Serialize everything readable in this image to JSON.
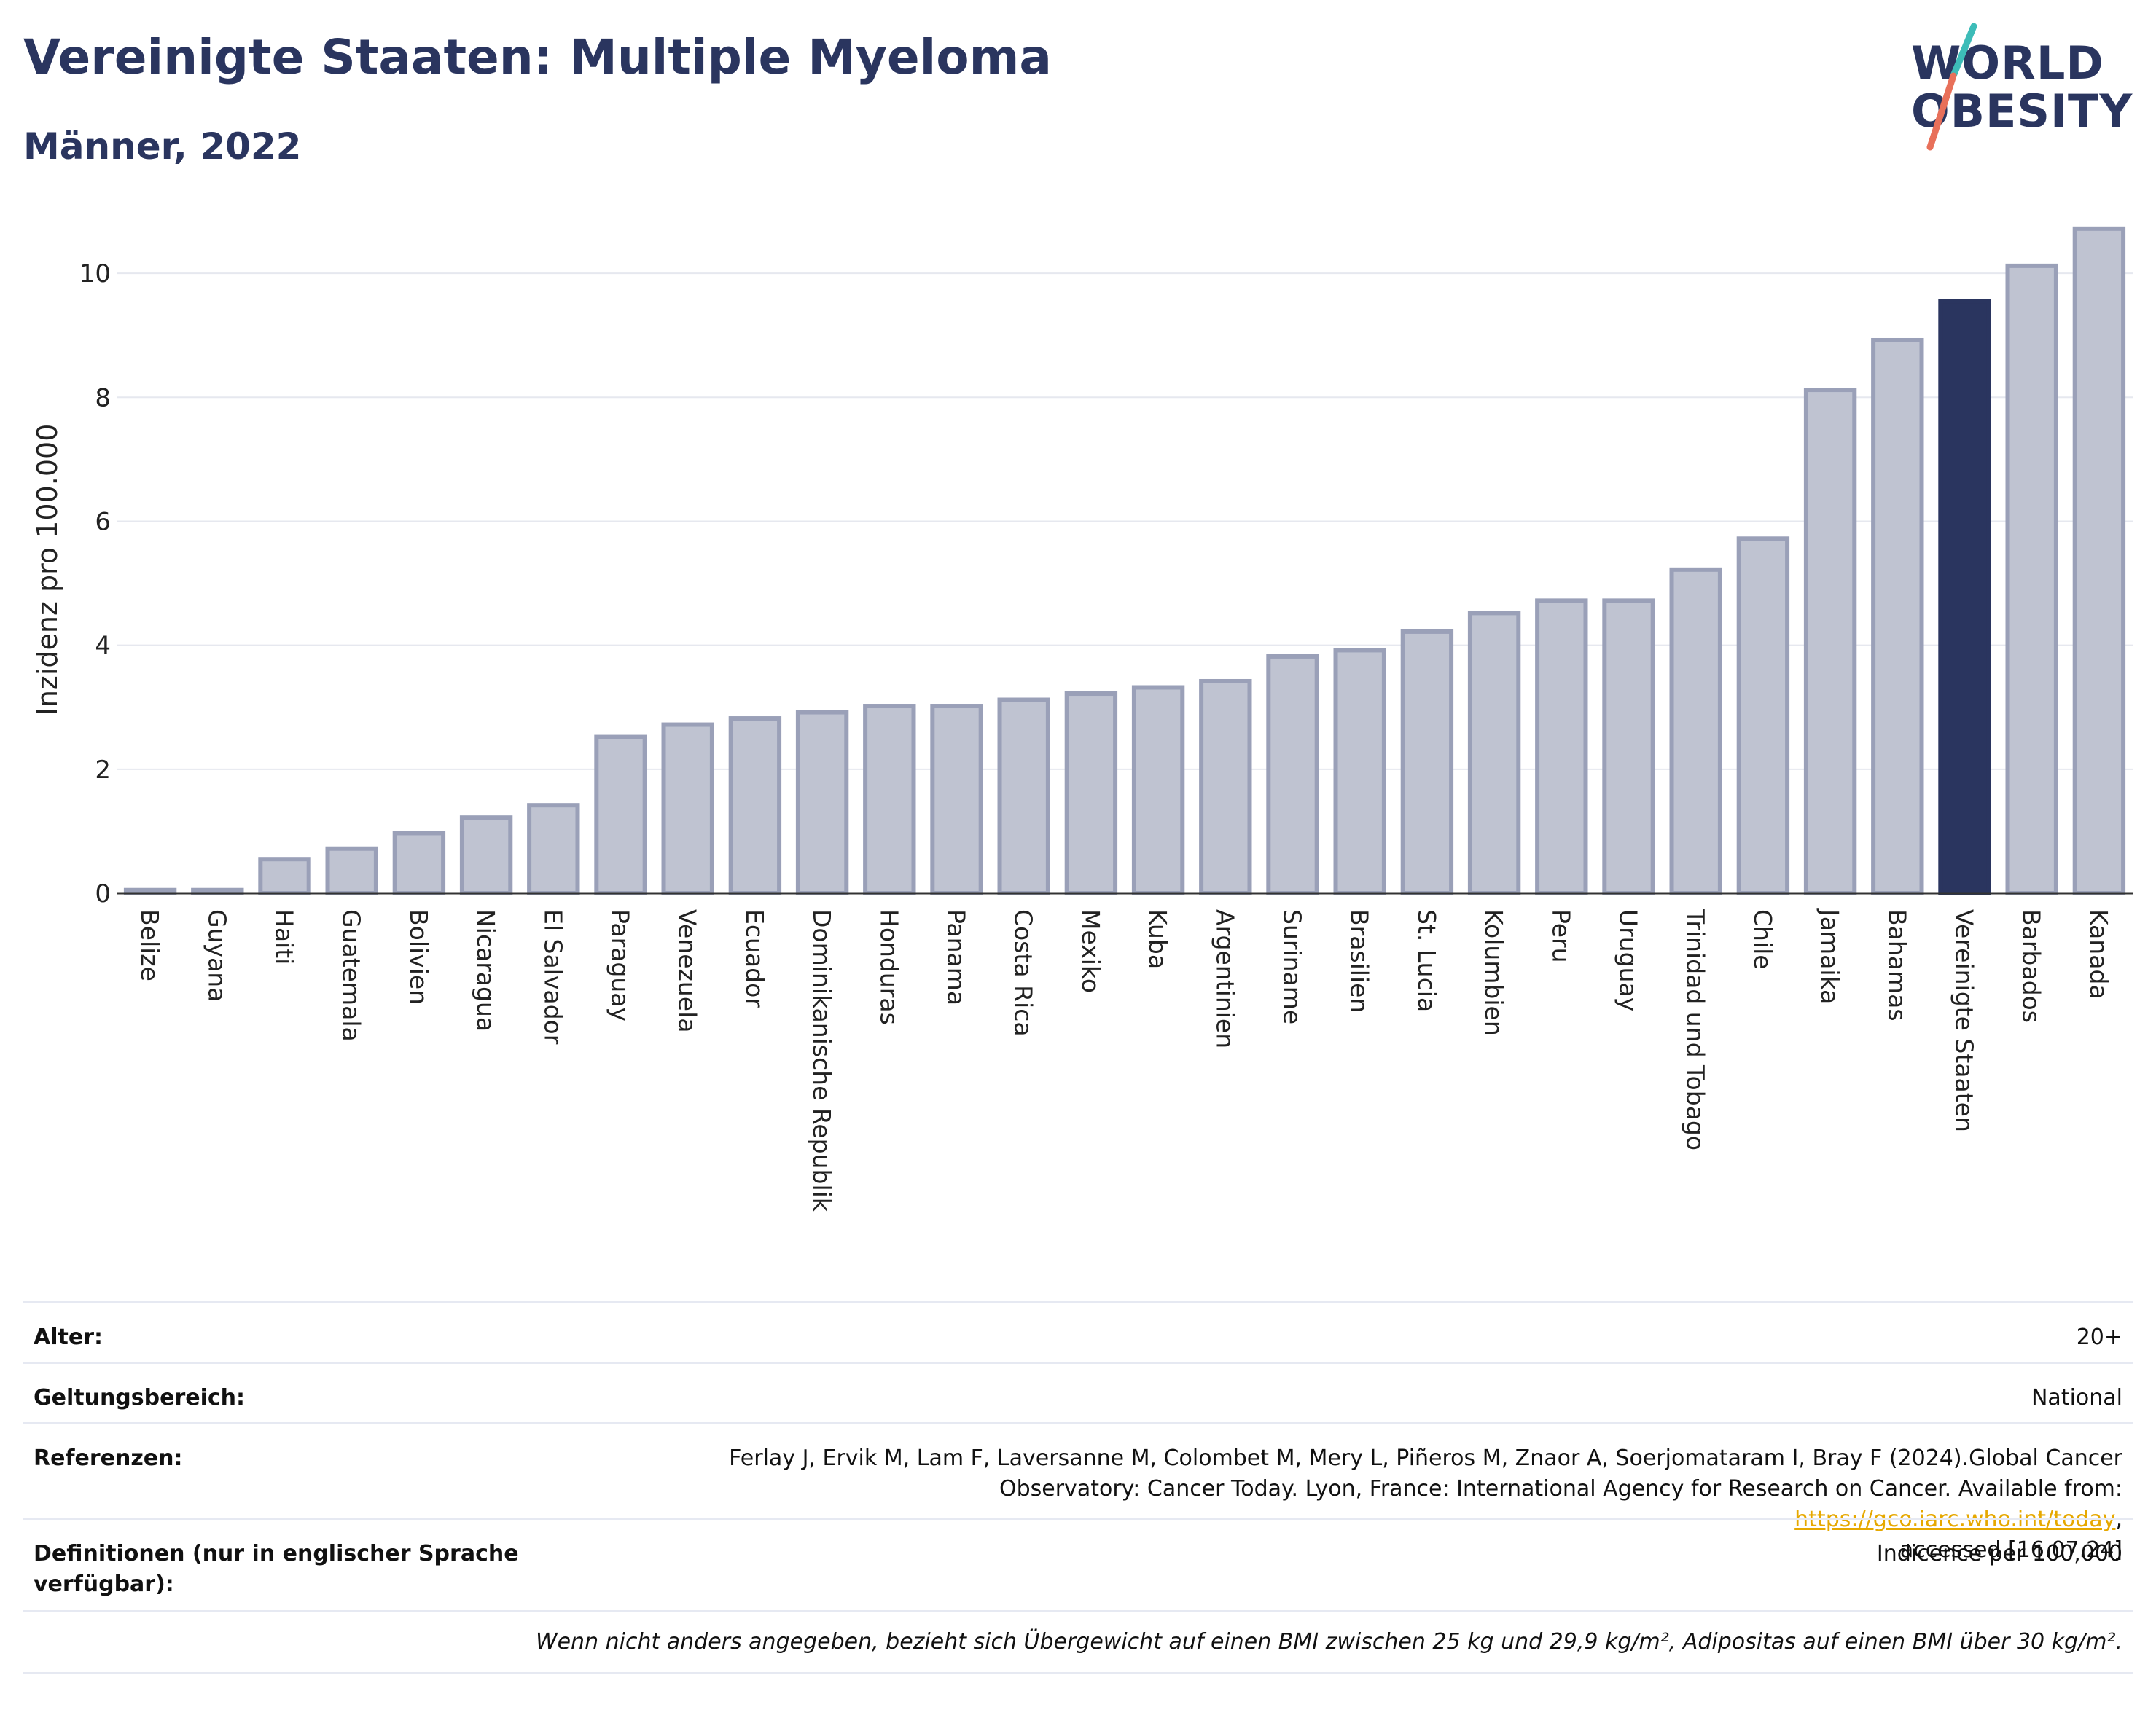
{
  "header": {
    "title": "Vereinigte Staaten: Multiple Myeloma",
    "subtitle": "Männer, 2022",
    "logo_line1": "WORLD",
    "logo_line2": "OBESITY"
  },
  "colors": {
    "bar_default": "#bfc3d1",
    "bar_border": "#9aa0b8",
    "bar_highlight": "#2a355f",
    "grid": "#e6e8ef",
    "text": "#2a355f",
    "link": "#e6a800"
  },
  "chart_data": {
    "type": "bar",
    "ylabel": "Inzidenz pro 100.000",
    "ylim": [
      0,
      11
    ],
    "yticks": [
      0,
      2,
      4,
      6,
      8,
      10
    ],
    "grid": true,
    "highlight": "Vereinigte Staaten",
    "categories": [
      "Belize",
      "Guyana",
      "Haiti",
      "Guatemala",
      "Bolivien",
      "Nicaragua",
      "El Salvador",
      "Paraguay",
      "Venezuela",
      "Ecuador",
      "Dominikanische Republik",
      "Honduras",
      "Panama",
      "Costa Rica",
      "Mexiko",
      "Kuba",
      "Argentinien",
      "Suriname",
      "Brasilien",
      "St. Lucia",
      "Kolumbien",
      "Peru",
      "Uruguay",
      "Trinidad und Tobago",
      "Chile",
      "Jamaika",
      "Bahamas",
      "Vereinigte Staaten",
      "Barbados",
      "Kanada"
    ],
    "values": [
      0.05,
      0.05,
      0.55,
      0.72,
      0.97,
      1.22,
      1.42,
      2.52,
      2.72,
      2.82,
      2.92,
      3.02,
      3.02,
      3.12,
      3.22,
      3.32,
      3.42,
      3.82,
      3.92,
      4.22,
      4.52,
      4.72,
      4.72,
      5.22,
      5.72,
      8.12,
      8.92,
      9.55,
      10.12,
      10.72
    ]
  },
  "table": {
    "age_label": "Alter:",
    "age_value": "20+",
    "scope_label": "Geltungsbereich:",
    "scope_value": "National",
    "refs_label": "Referenzen:",
    "refs_line1": "Ferlay J, Ervik M, Lam F, Laversanne M, Colombet M, Mery L, Piñeros M, Znaor A, Soerjomataram I, Bray F (2024).Global Cancer",
    "refs_line2_pre": "Observatory: Cancer Today. Lyon, France: International Agency for Research on Cancer. Available from: ",
    "refs_link": "https://gco.iarc.who.int/today",
    "refs_line2_post": ",",
    "refs_line3": "accessed [16.07.24]",
    "defs_label_line1": "Definitionen (nur in englischer Sprache",
    "defs_label_line2": "verfügbar):",
    "defs_value": "Indicence per 100,000",
    "note": "Wenn nicht anders angegeben, bezieht sich Übergewicht auf einen BMI zwischen 25 kg und 29,9 kg/m², Adipositas auf einen BMI über 30 kg/m²."
  }
}
